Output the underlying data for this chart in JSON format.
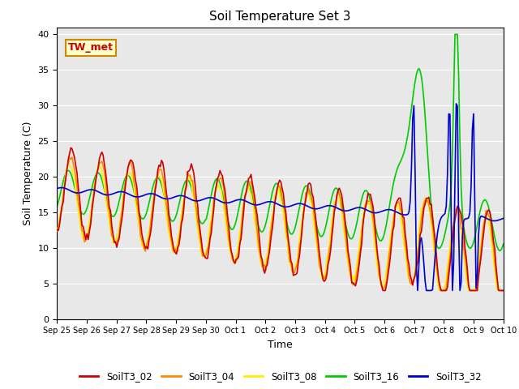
{
  "title": "Soil Temperature Set 3",
  "xlabel": "Time",
  "ylabel": "Soil Temperature (C)",
  "ylim": [
    0,
    41
  ],
  "annotation": "TW_met",
  "background_color": "#e8e8e8",
  "series": {
    "SoilT3_02": {
      "color": "#cc0000",
      "linewidth": 1.2
    },
    "SoilT3_04": {
      "color": "#ff8800",
      "linewidth": 1.2
    },
    "SoilT3_08": {
      "color": "#ffee00",
      "linewidth": 1.2
    },
    "SoilT3_16": {
      "color": "#00cc00",
      "linewidth": 1.2
    },
    "SoilT3_32": {
      "color": "#0000cc",
      "linewidth": 1.2
    }
  },
  "xtick_labels": [
    "Sep 25",
    "Sep 26",
    "Sep 27",
    "Sep 28",
    "Sep 29",
    "Sep 30",
    "Oct 1",
    "Oct 2",
    "Oct 3",
    "Oct 4",
    "Oct 5",
    "Oct 6",
    "Oct 7",
    "Oct 8",
    "Oct 9",
    "Oct 10"
  ],
  "ytick_labels": [
    0,
    5,
    10,
    15,
    20,
    25,
    30,
    35,
    40
  ]
}
